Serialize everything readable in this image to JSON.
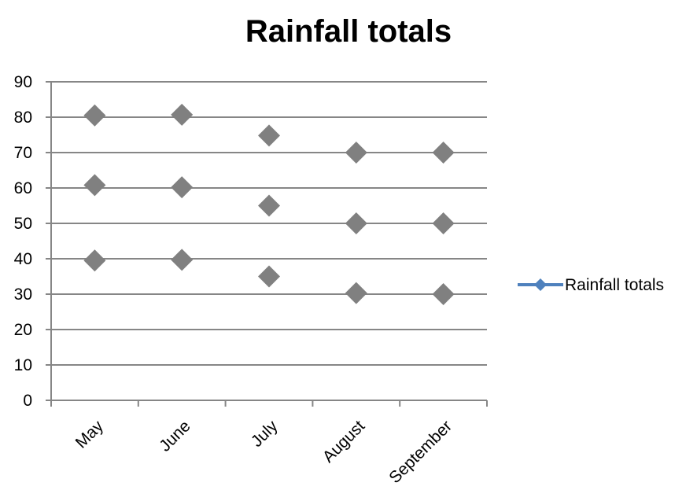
{
  "chart_data": {
    "type": "scatter",
    "title": "Rainfall totals",
    "xlabel": "",
    "ylabel": "",
    "categories": [
      "May",
      "June",
      "July",
      "August",
      "September"
    ],
    "ylim": [
      0,
      90
    ],
    "yticks": [
      0,
      10,
      20,
      30,
      40,
      50,
      60,
      70,
      80,
      90
    ],
    "grid": true,
    "legend_position": "right",
    "series": [
      {
        "name": "Rainfall totals",
        "color": "#4f81bd",
        "marker": "diamond",
        "marker_color": "#808080",
        "points": [
          {
            "x": "May",
            "y": 80.5
          },
          {
            "x": "May",
            "y": 60.8
          },
          {
            "x": "May",
            "y": 39.5
          },
          {
            "x": "June",
            "y": 80.7
          },
          {
            "x": "June",
            "y": 60.2
          },
          {
            "x": "June",
            "y": 39.7
          },
          {
            "x": "July",
            "y": 74.8
          },
          {
            "x": "July",
            "y": 55.0
          },
          {
            "x": "July",
            "y": 35.0
          },
          {
            "x": "August",
            "y": 70.0
          },
          {
            "x": "August",
            "y": 50.0
          },
          {
            "x": "August",
            "y": 30.3
          },
          {
            "x": "September",
            "y": 70.0
          },
          {
            "x": "September",
            "y": 50.0
          },
          {
            "x": "September",
            "y": 30.0
          }
        ]
      }
    ]
  }
}
